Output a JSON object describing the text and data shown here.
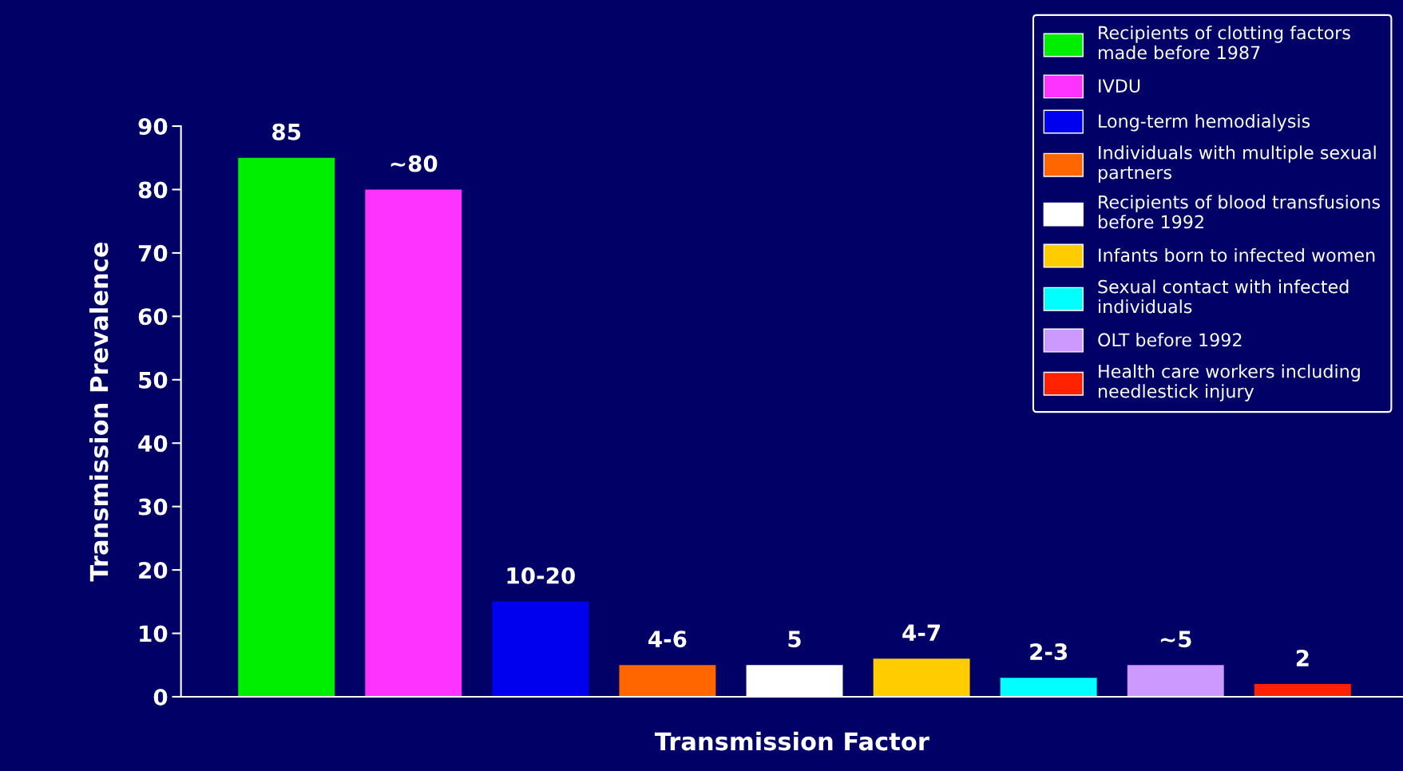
{
  "chart_data": {
    "type": "bar",
    "xlabel": "Transmission Factor",
    "ylabel": "Transmission Prevalence",
    "categories": [
      null,
      null,
      null,
      null,
      null,
      null,
      null,
      null,
      null
    ],
    "ylim": [
      0,
      90
    ],
    "yticks": [
      0,
      10,
      20,
      30,
      40,
      50,
      60,
      70,
      80,
      90
    ],
    "grid": false,
    "legend": "top right",
    "series": [
      {
        "name": "Recipients of clotting factors\nmade before 1987",
        "color": "#00ee00",
        "values": [
          85,
          null,
          null,
          null,
          null,
          null,
          null,
          null,
          null
        ],
        "value_labels": [
          "85",
          null,
          null,
          null,
          null,
          null,
          null,
          null,
          null
        ]
      },
      {
        "name": "IVDU",
        "color": "#ff33ff",
        "values": [
          null,
          80,
          null,
          null,
          null,
          null,
          null,
          null,
          null
        ],
        "value_labels": [
          null,
          "~80",
          null,
          null,
          null,
          null,
          null,
          null,
          null
        ]
      },
      {
        "name": "Long-term hemodialysis",
        "color": "#0000ee",
        "values": [
          null,
          null,
          15,
          null,
          null,
          null,
          null,
          null,
          null
        ],
        "value_labels": [
          null,
          null,
          "10-20",
          null,
          null,
          null,
          null,
          null,
          null
        ]
      },
      {
        "name": "Individuals with multiple sexual\npartners",
        "color": "#ff6600",
        "values": [
          null,
          null,
          null,
          5,
          null,
          null,
          null,
          null,
          null
        ],
        "value_labels": [
          null,
          null,
          null,
          "4-6",
          null,
          null,
          null,
          null,
          null
        ]
      },
      {
        "name": "Recipients of blood transfusions\nbefore 1992",
        "color": "#ffffff",
        "values": [
          null,
          null,
          null,
          null,
          5,
          null,
          null,
          null,
          null
        ],
        "value_labels": [
          null,
          null,
          null,
          null,
          "5",
          null,
          null,
          null,
          null
        ]
      },
      {
        "name": "Infants born to infected women",
        "color": "#ffcc00",
        "values": [
          null,
          null,
          null,
          null,
          null,
          6,
          null,
          null,
          null
        ],
        "value_labels": [
          null,
          null,
          null,
          null,
          null,
          "4-7",
          null,
          null,
          null
        ]
      },
      {
        "name": "Sexual contact with infected\nindividuals",
        "color": "#00ffff",
        "values": [
          null,
          null,
          null,
          null,
          null,
          null,
          3,
          null,
          null
        ],
        "value_labels": [
          null,
          null,
          null,
          null,
          null,
          null,
          "2-3",
          null,
          null
        ]
      },
      {
        "name": "OLT before 1992",
        "color": "#cc99ff",
        "values": [
          null,
          null,
          null,
          null,
          null,
          null,
          null,
          5,
          null
        ],
        "value_labels": [
          null,
          null,
          null,
          null,
          null,
          null,
          null,
          "~5",
          null
        ]
      },
      {
        "name": "Health care workers including\nneedlestick injury",
        "color": "#ff2200",
        "values": [
          null,
          null,
          null,
          null,
          null,
          null,
          null,
          null,
          2
        ],
        "value_labels": [
          null,
          null,
          null,
          null,
          null,
          null,
          null,
          null,
          "2"
        ]
      }
    ]
  }
}
